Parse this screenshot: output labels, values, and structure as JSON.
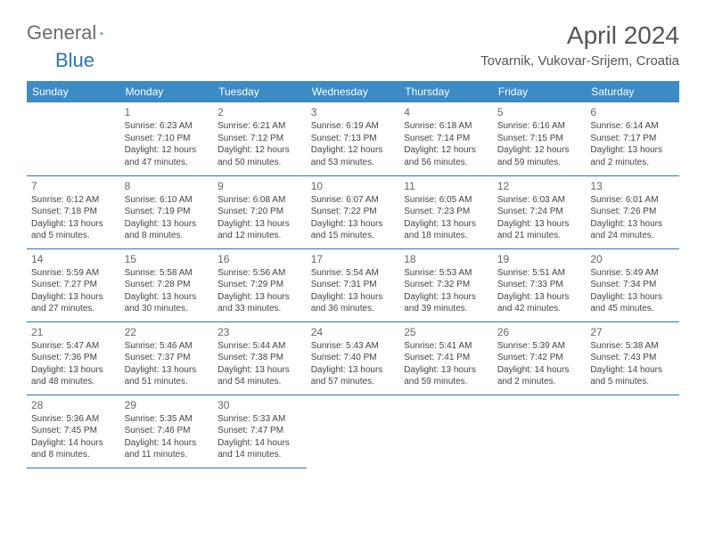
{
  "logo": {
    "text1": "General",
    "text2": "Blue"
  },
  "title": "April 2024",
  "location": "Tovarnik, Vukovar-Srijem, Croatia",
  "colors": {
    "header_bg": "#3b8bc6",
    "border": "#2d72b5",
    "text": "#444444",
    "title_text": "#555555"
  },
  "weekdays": [
    "Sunday",
    "Monday",
    "Tuesday",
    "Wednesday",
    "Thursday",
    "Friday",
    "Saturday"
  ],
  "weeks": [
    [
      null,
      {
        "d": "1",
        "sr": "Sunrise: 6:23 AM",
        "ss": "Sunset: 7:10 PM",
        "dl": "Daylight: 12 hours and 47 minutes."
      },
      {
        "d": "2",
        "sr": "Sunrise: 6:21 AM",
        "ss": "Sunset: 7:12 PM",
        "dl": "Daylight: 12 hours and 50 minutes."
      },
      {
        "d": "3",
        "sr": "Sunrise: 6:19 AM",
        "ss": "Sunset: 7:13 PM",
        "dl": "Daylight: 12 hours and 53 minutes."
      },
      {
        "d": "4",
        "sr": "Sunrise: 6:18 AM",
        "ss": "Sunset: 7:14 PM",
        "dl": "Daylight: 12 hours and 56 minutes."
      },
      {
        "d": "5",
        "sr": "Sunrise: 6:16 AM",
        "ss": "Sunset: 7:15 PM",
        "dl": "Daylight: 12 hours and 59 minutes."
      },
      {
        "d": "6",
        "sr": "Sunrise: 6:14 AM",
        "ss": "Sunset: 7:17 PM",
        "dl": "Daylight: 13 hours and 2 minutes."
      }
    ],
    [
      {
        "d": "7",
        "sr": "Sunrise: 6:12 AM",
        "ss": "Sunset: 7:18 PM",
        "dl": "Daylight: 13 hours and 5 minutes."
      },
      {
        "d": "8",
        "sr": "Sunrise: 6:10 AM",
        "ss": "Sunset: 7:19 PM",
        "dl": "Daylight: 13 hours and 8 minutes."
      },
      {
        "d": "9",
        "sr": "Sunrise: 6:08 AM",
        "ss": "Sunset: 7:20 PM",
        "dl": "Daylight: 13 hours and 12 minutes."
      },
      {
        "d": "10",
        "sr": "Sunrise: 6:07 AM",
        "ss": "Sunset: 7:22 PM",
        "dl": "Daylight: 13 hours and 15 minutes."
      },
      {
        "d": "11",
        "sr": "Sunrise: 6:05 AM",
        "ss": "Sunset: 7:23 PM",
        "dl": "Daylight: 13 hours and 18 minutes."
      },
      {
        "d": "12",
        "sr": "Sunrise: 6:03 AM",
        "ss": "Sunset: 7:24 PM",
        "dl": "Daylight: 13 hours and 21 minutes."
      },
      {
        "d": "13",
        "sr": "Sunrise: 6:01 AM",
        "ss": "Sunset: 7:26 PM",
        "dl": "Daylight: 13 hours and 24 minutes."
      }
    ],
    [
      {
        "d": "14",
        "sr": "Sunrise: 5:59 AM",
        "ss": "Sunset: 7:27 PM",
        "dl": "Daylight: 13 hours and 27 minutes."
      },
      {
        "d": "15",
        "sr": "Sunrise: 5:58 AM",
        "ss": "Sunset: 7:28 PM",
        "dl": "Daylight: 13 hours and 30 minutes."
      },
      {
        "d": "16",
        "sr": "Sunrise: 5:56 AM",
        "ss": "Sunset: 7:29 PM",
        "dl": "Daylight: 13 hours and 33 minutes."
      },
      {
        "d": "17",
        "sr": "Sunrise: 5:54 AM",
        "ss": "Sunset: 7:31 PM",
        "dl": "Daylight: 13 hours and 36 minutes."
      },
      {
        "d": "18",
        "sr": "Sunrise: 5:53 AM",
        "ss": "Sunset: 7:32 PM",
        "dl": "Daylight: 13 hours and 39 minutes."
      },
      {
        "d": "19",
        "sr": "Sunrise: 5:51 AM",
        "ss": "Sunset: 7:33 PM",
        "dl": "Daylight: 13 hours and 42 minutes."
      },
      {
        "d": "20",
        "sr": "Sunrise: 5:49 AM",
        "ss": "Sunset: 7:34 PM",
        "dl": "Daylight: 13 hours and 45 minutes."
      }
    ],
    [
      {
        "d": "21",
        "sr": "Sunrise: 5:47 AM",
        "ss": "Sunset: 7:36 PM",
        "dl": "Daylight: 13 hours and 48 minutes."
      },
      {
        "d": "22",
        "sr": "Sunrise: 5:46 AM",
        "ss": "Sunset: 7:37 PM",
        "dl": "Daylight: 13 hours and 51 minutes."
      },
      {
        "d": "23",
        "sr": "Sunrise: 5:44 AM",
        "ss": "Sunset: 7:38 PM",
        "dl": "Daylight: 13 hours and 54 minutes."
      },
      {
        "d": "24",
        "sr": "Sunrise: 5:43 AM",
        "ss": "Sunset: 7:40 PM",
        "dl": "Daylight: 13 hours and 57 minutes."
      },
      {
        "d": "25",
        "sr": "Sunrise: 5:41 AM",
        "ss": "Sunset: 7:41 PM",
        "dl": "Daylight: 13 hours and 59 minutes."
      },
      {
        "d": "26",
        "sr": "Sunrise: 5:39 AM",
        "ss": "Sunset: 7:42 PM",
        "dl": "Daylight: 14 hours and 2 minutes."
      },
      {
        "d": "27",
        "sr": "Sunrise: 5:38 AM",
        "ss": "Sunset: 7:43 PM",
        "dl": "Daylight: 14 hours and 5 minutes."
      }
    ],
    [
      {
        "d": "28",
        "sr": "Sunrise: 5:36 AM",
        "ss": "Sunset: 7:45 PM",
        "dl": "Daylight: 14 hours and 8 minutes."
      },
      {
        "d": "29",
        "sr": "Sunrise: 5:35 AM",
        "ss": "Sunset: 7:46 PM",
        "dl": "Daylight: 14 hours and 11 minutes."
      },
      {
        "d": "30",
        "sr": "Sunrise: 5:33 AM",
        "ss": "Sunset: 7:47 PM",
        "dl": "Daylight: 14 hours and 14 minutes."
      },
      null,
      null,
      null,
      null
    ]
  ]
}
